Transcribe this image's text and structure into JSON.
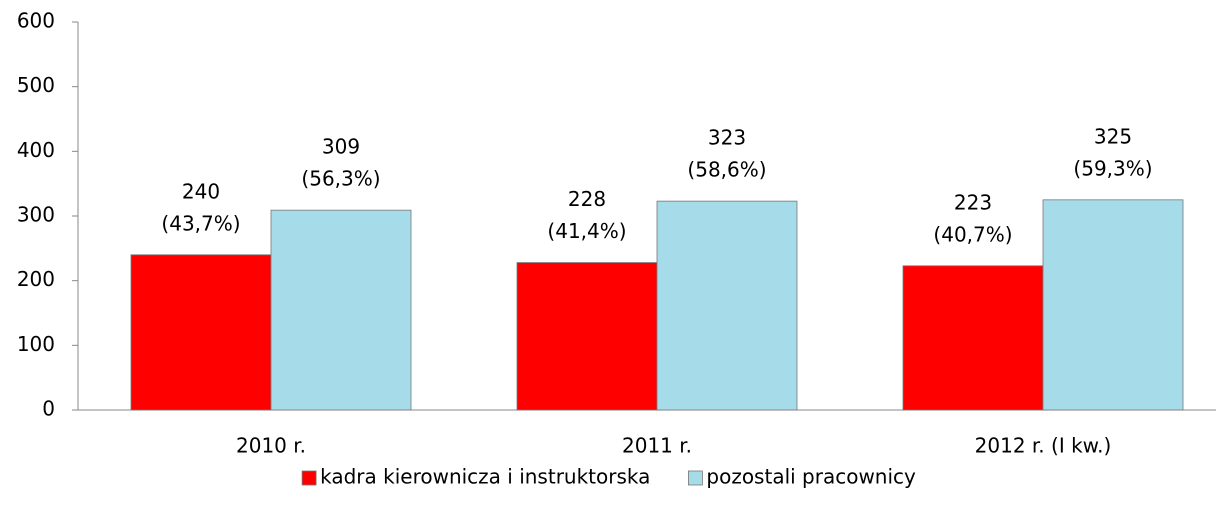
{
  "chart_data": {
    "type": "bar",
    "categories": [
      "2010 r.",
      "2011 r.",
      "2012 r. (I kw.)"
    ],
    "series": [
      {
        "name": "kadra kierownicza i instruktorska",
        "color": "#ff0000",
        "values": [
          240,
          228,
          223
        ],
        "value_labels": [
          [
            "240",
            "(43,7%)"
          ],
          [
            "228",
            "(41,4%)"
          ],
          [
            "223",
            "(40,7%)"
          ]
        ]
      },
      {
        "name": "pozostali pracownicy",
        "color": "#a6dce9",
        "values": [
          309,
          323,
          325
        ],
        "value_labels": [
          [
            "309",
            "(56,3%)"
          ],
          [
            "323",
            "(58,6%)"
          ],
          [
            "325",
            "(59,3%)"
          ]
        ]
      }
    ],
    "ylim": [
      0,
      600
    ],
    "yticks": [
      0,
      100,
      200,
      300,
      400,
      500,
      600
    ],
    "grid": false,
    "legend": "bottom"
  }
}
